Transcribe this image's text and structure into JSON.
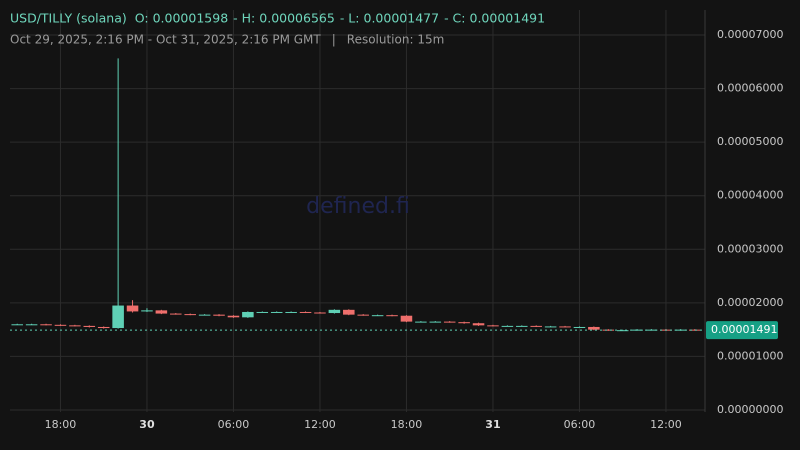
{
  "header": {
    "symbol": "USD/TILLY (solana)",
    "fields": [
      {
        "label": "O:",
        "value": "0.00001598"
      },
      {
        "label": "- H:",
        "value": "0.00006565"
      },
      {
        "label": "- L:",
        "value": "0.00001477"
      },
      {
        "label": "- C:",
        "value": "0.00001491"
      }
    ],
    "range": "Oct 29, 2025, 2:16 PM - Oct 31, 2025, 2:16 PM GMT",
    "separator": "|",
    "resolution": "Resolution: 15m",
    "watermark": "defined.fi"
  },
  "chart_data": {
    "type": "candlestick",
    "up_color": "#5fd0b5",
    "down_color": "#ef6f6c",
    "grid": true,
    "categories": [
      null,
      null,
      null,
      "18:00",
      null,
      null,
      null,
      null,
      null,
      "30",
      null,
      null,
      null,
      null,
      null,
      "06:00",
      null,
      null,
      null,
      null,
      null,
      "12:00",
      null,
      null,
      null,
      null,
      null,
      "18:00",
      null,
      null,
      null,
      null,
      null,
      "31",
      null,
      null,
      null,
      null,
      null,
      "06:00",
      null,
      null,
      null,
      null,
      null,
      "12:00",
      null,
      null
    ],
    "open": [
      1.6e-05,
      1.6e-05,
      1.6e-05,
      1.59e-05,
      1.58e-05,
      1.57e-05,
      1.55e-05,
      1.53e-05,
      1.95e-05,
      1.84e-05,
      1.86e-05,
      1.8e-05,
      1.79e-05,
      1.78e-05,
      1.78e-05,
      1.76e-05,
      1.73e-05,
      1.83e-05,
      1.83e-05,
      1.83e-05,
      1.83e-05,
      1.82e-05,
      1.81e-05,
      1.87e-05,
      1.78e-05,
      1.77e-05,
      1.77e-05,
      1.76e-05,
      1.65e-05,
      1.65e-05,
      1.65e-05,
      1.64e-05,
      1.62e-05,
      1.58e-05,
      1.57e-05,
      1.57e-05,
      1.57e-05,
      1.56e-05,
      1.56e-05,
      1.55e-05,
      1.55e-05,
      1.5e-05,
      1.49e-05,
      1.49e-05,
      1.5e-05,
      1.5e-05,
      1.49e-05,
      1.5e-05
    ],
    "high": [
      1.61e-05,
      1.61e-05,
      1.61e-05,
      1.6e-05,
      1.59e-05,
      1.58e-05,
      1.56e-05,
      6.565e-05,
      2.05e-05,
      1.9e-05,
      1.87e-05,
      1.81e-05,
      1.8e-05,
      1.79e-05,
      1.79e-05,
      1.77e-05,
      1.84e-05,
      1.84e-05,
      1.84e-05,
      1.84e-05,
      1.84e-05,
      1.83e-05,
      1.88e-05,
      1.88e-05,
      1.79e-05,
      1.78e-05,
      1.78e-05,
      1.77e-05,
      1.66e-05,
      1.66e-05,
      1.66e-05,
      1.65e-05,
      1.63e-05,
      1.59e-05,
      1.58e-05,
      1.58e-05,
      1.58e-05,
      1.57e-05,
      1.57e-05,
      1.56e-05,
      1.56e-05,
      1.51e-05,
      1.5e-05,
      1.51e-05,
      1.51e-05,
      1.51e-05,
      1.51e-05,
      1.51e-05
    ],
    "low": [
      1.59e-05,
      1.59e-05,
      1.58e-05,
      1.57e-05,
      1.56e-05,
      1.54e-05,
      1.52e-05,
      1.52e-05,
      1.82e-05,
      1.83e-05,
      1.79e-05,
      1.78e-05,
      1.77e-05,
      1.77e-05,
      1.75e-05,
      1.72e-05,
      1.72e-05,
      1.82e-05,
      1.82e-05,
      1.82e-05,
      1.81e-05,
      1.8e-05,
      1.8e-05,
      1.77e-05,
      1.76e-05,
      1.76e-05,
      1.75e-05,
      1.64e-05,
      1.64e-05,
      1.64e-05,
      1.63e-05,
      1.61e-05,
      1.57e-05,
      1.56e-05,
      1.56e-05,
      1.56e-05,
      1.55e-05,
      1.55e-05,
      1.54e-05,
      1.54e-05,
      1.49e-05,
      1.477e-05,
      1.48e-05,
      1.48e-05,
      1.49e-05,
      1.48e-05,
      1.48e-05,
      1.48e-05
    ],
    "close": [
      1.6e-05,
      1.6e-05,
      1.59e-05,
      1.58e-05,
      1.57e-05,
      1.55e-05,
      1.53e-05,
      1.95e-05,
      1.84e-05,
      1.86e-05,
      1.8e-05,
      1.79e-05,
      1.78e-05,
      1.78e-05,
      1.76e-05,
      1.73e-05,
      1.83e-05,
      1.83e-05,
      1.83e-05,
      1.83e-05,
      1.82e-05,
      1.81e-05,
      1.87e-05,
      1.78e-05,
      1.77e-05,
      1.77e-05,
      1.76e-05,
      1.65e-05,
      1.65e-05,
      1.65e-05,
      1.64e-05,
      1.62e-05,
      1.58e-05,
      1.57e-05,
      1.57e-05,
      1.57e-05,
      1.56e-05,
      1.56e-05,
      1.55e-05,
      1.55e-05,
      1.5e-05,
      1.49e-05,
      1.49e-05,
      1.5e-05,
      1.5e-05,
      1.49e-05,
      1.5e-05,
      1.491e-05
    ],
    "ylim": [
      0,
      7.467e-05
    ],
    "yticks": [
      {
        "value": 0,
        "label": "0.00000000"
      },
      {
        "value": 1e-05,
        "label": "0.00001000"
      },
      {
        "value": 2e-05,
        "label": "0.00002000"
      },
      {
        "value": 3e-05,
        "label": "0.00003000"
      },
      {
        "value": 4e-05,
        "label": "0.00004000"
      },
      {
        "value": 5e-05,
        "label": "0.00005000"
      },
      {
        "value": 6e-05,
        "label": "0.00006000"
      },
      {
        "value": 7e-05,
        "label": "0.00007000"
      }
    ],
    "last_price": {
      "value": 1.491e-05,
      "label": "0.00001491"
    }
  }
}
